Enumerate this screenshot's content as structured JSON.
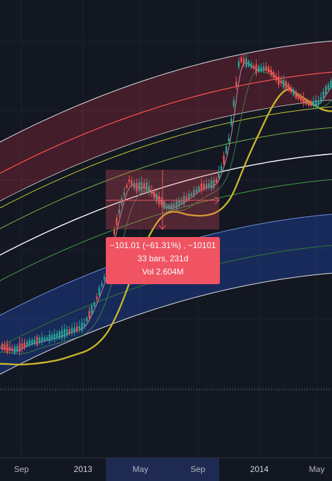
{
  "time_axis": {
    "ticks": [
      {
        "label": "Sep",
        "major": false
      },
      {
        "label": "2013",
        "major": true
      },
      {
        "label": "May",
        "major": false
      },
      {
        "label": "Sep",
        "major": false
      },
      {
        "label": "2014",
        "major": true
      },
      {
        "label": "May",
        "major": false
      }
    ]
  },
  "measure": {
    "change_line": "−101.01 (−61.31%) , −10101",
    "bars_line": "33 bars, 231d",
    "volume_line": "Vol 2.604M"
  },
  "colors": {
    "background": "#131722",
    "bull_candle": "#26a69a",
    "bear_candle": "#ef5350",
    "red_band": "#f23645",
    "blue_band": "#2962ff",
    "ma_yellow": "#c9b52b",
    "measure": "#f05462"
  }
}
